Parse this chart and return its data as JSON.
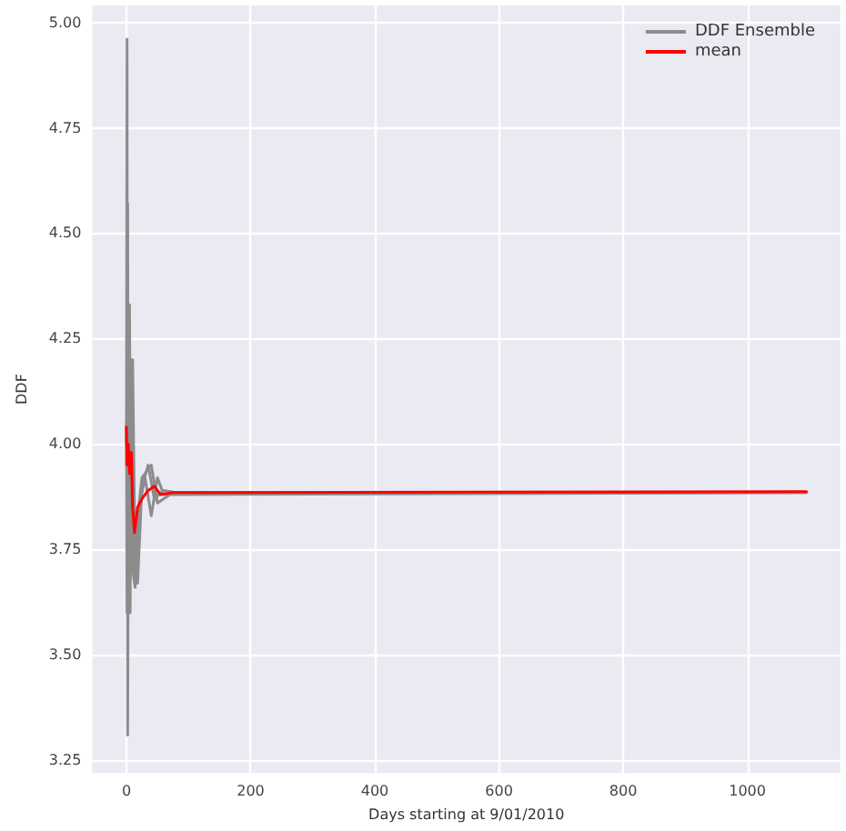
{
  "chart_data": {
    "type": "line",
    "xlabel": "Days starting at 9/01/2010",
    "ylabel": "DDF",
    "xlim": [
      -55,
      1150
    ],
    "xticks": [
      0,
      200,
      400,
      600,
      800,
      1000
    ],
    "ylim": [
      3.22,
      5.04
    ],
    "yticks": [
      {
        "value": 3.25,
        "label": "3.25"
      },
      {
        "value": 3.5,
        "label": "3.50"
      },
      {
        "value": 3.75,
        "label": "3.75"
      },
      {
        "value": 4,
        "label": "4.00"
      },
      {
        "value": 4.25,
        "label": "4.25"
      },
      {
        "value": 4.5,
        "label": "4.50"
      },
      {
        "value": 4.75,
        "label": "4.75"
      },
      {
        "value": 5,
        "label": "5.00"
      }
    ],
    "grid": true,
    "legend": "top right",
    "line_style": "solid",
    "marker": "none",
    "series": [
      {
        "name": "DDF Ensemble",
        "color": "#8c8c8c",
        "x": [
          0,
          1,
          2,
          4,
          6,
          8,
          10,
          14,
          20,
          30,
          40,
          50,
          60,
          80,
          1095
        ],
        "values": [
          4.0,
          4.96,
          3.31,
          4.3,
          3.6,
          4.2,
          3.7,
          3.66,
          3.85,
          3.92,
          3.83,
          3.92,
          3.88,
          3.885,
          3.885
        ]
      },
      {
        "color": "#8c8c8c",
        "x": [
          0,
          1,
          2,
          3,
          5,
          7,
          10,
          14,
          18,
          25,
          35,
          45,
          60,
          80,
          1095
        ],
        "values": [
          4.05,
          3.6,
          4.57,
          3.65,
          4.33,
          3.75,
          4.2,
          3.7,
          3.67,
          3.9,
          3.95,
          3.87,
          3.89,
          3.885,
          3.886
        ]
      },
      {
        "color": "#8c8c8c",
        "x": [
          0,
          2,
          4,
          8,
          12,
          16,
          25,
          40,
          50,
          70,
          1095
        ],
        "values": [
          3.95,
          4.1,
          3.8,
          4.1,
          3.75,
          3.8,
          3.92,
          3.95,
          3.86,
          3.88,
          3.885
        ]
      },
      {
        "name": "mean",
        "color": "#ff0000",
        "x": [
          0,
          1,
          3,
          5,
          8,
          10,
          13,
          18,
          25,
          35,
          45,
          55,
          75,
          1095
        ],
        "values": [
          4.04,
          3.95,
          4.0,
          3.93,
          3.98,
          3.85,
          3.79,
          3.85,
          3.87,
          3.89,
          3.9,
          3.88,
          3.885,
          3.887
        ]
      }
    ]
  }
}
